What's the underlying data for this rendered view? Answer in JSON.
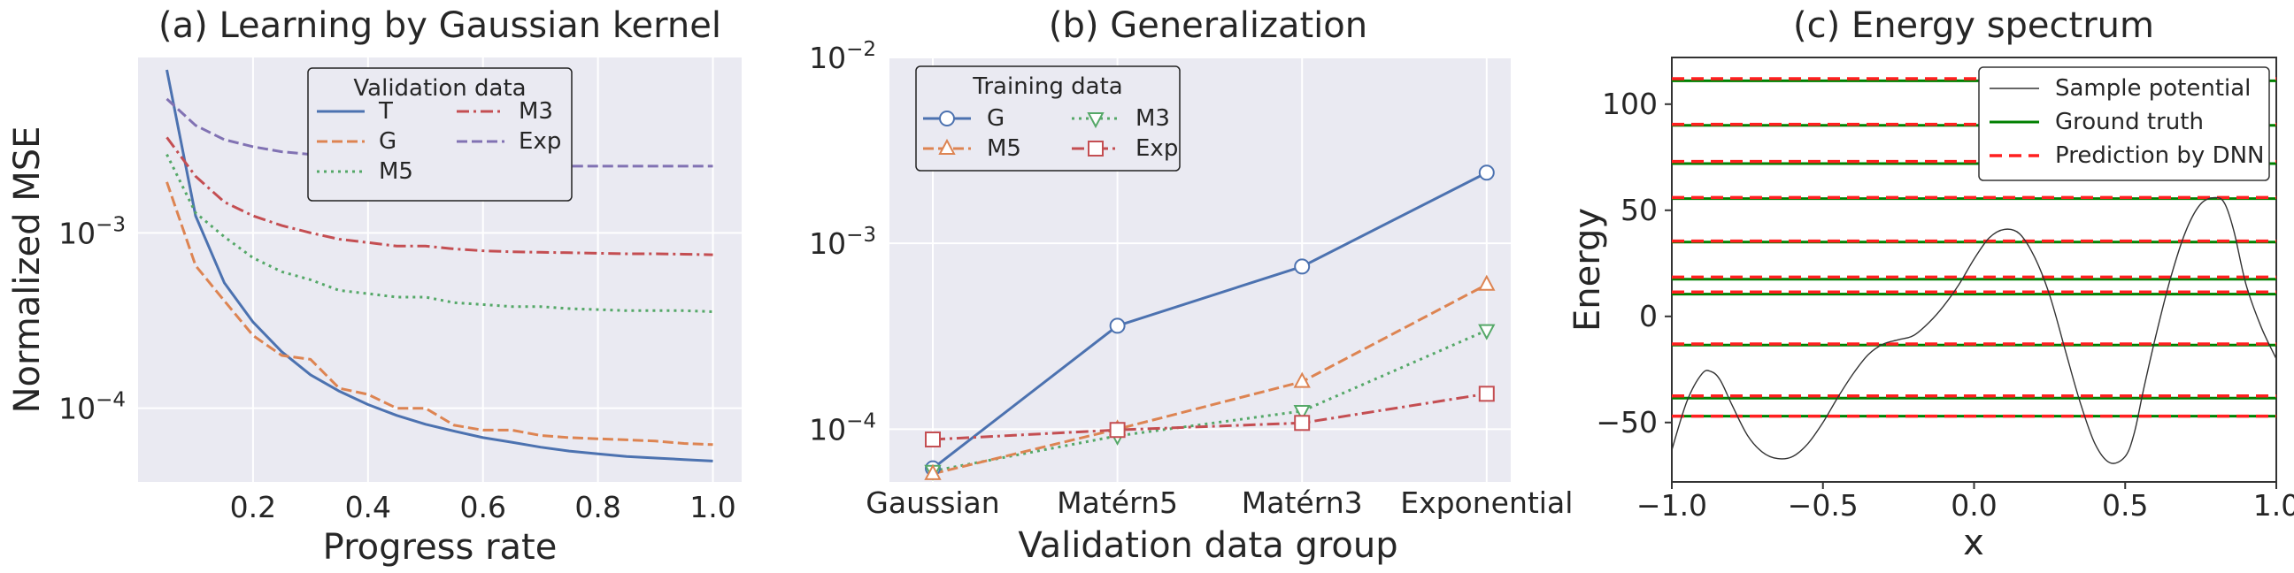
{
  "chart_data": [
    {
      "type": "line",
      "title": "(a) Learning by Gaussian kernel",
      "xlabel": "Progress rate",
      "ylabel": "Normalized MSE",
      "yscale": "log",
      "xlim": [
        0.0,
        1.05
      ],
      "ylim": [
        3.8e-05,
        0.01
      ],
      "xticks": [
        0.2,
        0.4,
        0.6,
        0.8,
        1.0
      ],
      "xtick_labels": [
        "0.2",
        "0.4",
        "0.6",
        "0.8",
        "1.0"
      ],
      "yticks": [
        0.0001,
        0.001
      ],
      "ytick_labels": [
        [
          "10",
          "−4"
        ],
        [
          "10",
          "−3"
        ]
      ],
      "legend": {
        "title": "Validation data",
        "position": "upper-center",
        "ncol": 2
      },
      "x": [
        0.05,
        0.1,
        0.15,
        0.2,
        0.25,
        0.3,
        0.35,
        0.4,
        0.45,
        0.5,
        0.55,
        0.6,
        0.65,
        0.7,
        0.75,
        0.8,
        0.85,
        0.9,
        0.95,
        1.0
      ],
      "series": [
        {
          "name": "T",
          "color": "#4c72b0",
          "dash": "solid",
          "values": [
            0.0085,
            0.00125,
            0.00052,
            0.00031,
            0.00021,
            0.000155,
            0.000125,
            0.000105,
            9.1e-05,
            8.1e-05,
            7.4e-05,
            6.8e-05,
            6.4e-05,
            6e-05,
            5.7e-05,
            5.5e-05,
            5.3e-05,
            5.2e-05,
            5.1e-05,
            5e-05
          ]
        },
        {
          "name": "G",
          "color": "#dd8452",
          "dash": "dashed",
          "values": [
            0.00195,
            0.00065,
            0.00041,
            0.00026,
            0.0002,
            0.00019,
            0.00013,
            0.00012,
            0.0001,
            0.0001,
            8e-05,
            7.5e-05,
            7.5e-05,
            7e-05,
            6.8e-05,
            6.7e-05,
            6.6e-05,
            6.5e-05,
            6.3e-05,
            6.2e-05
          ]
        },
        {
          "name": "M5",
          "color": "#55a868",
          "dash": "dotted",
          "values": [
            0.0028,
            0.0013,
            0.00095,
            0.00072,
            0.0006,
            0.00054,
            0.00047,
            0.00045,
            0.00043,
            0.00043,
            0.0004,
            0.00039,
            0.00038,
            0.00038,
            0.00037,
            0.000365,
            0.00036,
            0.00036,
            0.00036,
            0.000355
          ]
        },
        {
          "name": "M3",
          "color": "#c44e52",
          "dash": "dashdot",
          "values": [
            0.0035,
            0.0021,
            0.0015,
            0.00125,
            0.0011,
            0.001,
            0.00092,
            0.00088,
            0.00084,
            0.00084,
            0.00081,
            0.00079,
            0.00078,
            0.000775,
            0.00077,
            0.000765,
            0.00076,
            0.00076,
            0.000755,
            0.00075
          ]
        },
        {
          "name": "Exp",
          "color": "#8172b3",
          "dash": "dashed",
          "values": [
            0.0058,
            0.0041,
            0.0034,
            0.0031,
            0.0029,
            0.0028,
            0.0027,
            0.0026,
            0.0026,
            0.0025,
            0.0025,
            0.0025,
            0.0024,
            0.0024,
            0.0024,
            0.0024,
            0.0024,
            0.0024,
            0.0024,
            0.0024
          ]
        }
      ]
    },
    {
      "type": "line",
      "title": "(b) Generalization",
      "xlabel": "Validation data group",
      "ylabel": "",
      "yscale": "log",
      "ylim": [
        5.2e-05,
        0.01
      ],
      "categories": [
        "Gaussian",
        "Matérn5",
        "Matérn3",
        "Exponential"
      ],
      "yticks": [
        0.0001,
        0.001,
        0.01
      ],
      "ytick_labels": [
        [
          "10",
          "−4"
        ],
        [
          "10",
          "−3"
        ],
        [
          "10",
          "−2"
        ]
      ],
      "legend": {
        "title": "Training data",
        "position": "upper-left",
        "ncol": 2
      },
      "series": [
        {
          "name": "G",
          "color": "#4c72b0",
          "dash": "solid",
          "marker": "circle",
          "values": [
            6.15e-05,
            0.00036,
            0.00075,
            0.0024
          ]
        },
        {
          "name": "M3",
          "color": "#55a868",
          "dash": "dotted",
          "marker": "triangle-down",
          "values": [
            5.95e-05,
            9.2e-05,
            0.000125,
            0.00034
          ]
        },
        {
          "name": "M5",
          "color": "#dd8452",
          "dash": "dashed",
          "marker": "triangle-up",
          "values": [
            5.75e-05,
            0.0001,
            0.00018,
            0.0006
          ]
        },
        {
          "name": "Exp",
          "color": "#c44e52",
          "dash": "dashdot",
          "marker": "square",
          "values": [
            8.8e-05,
            9.9e-05,
            0.000108,
            0.000155
          ]
        }
      ]
    },
    {
      "type": "line",
      "title": "(c) Energy spectrum",
      "xlabel": "x",
      "ylabel": "Energy",
      "xlim": [
        -1.0,
        1.0
      ],
      "ylim": [
        -78,
        122
      ],
      "xticks": [
        -1.0,
        -0.5,
        0.0,
        0.5,
        1.0
      ],
      "xtick_labels": [
        "−1.0",
        "−0.5",
        "0.0",
        "0.5",
        "1.0"
      ],
      "yticks": [
        -50,
        0,
        50,
        100
      ],
      "ytick_labels": [
        "−50",
        "0",
        "50",
        "100"
      ],
      "legend": {
        "position": "upper-right"
      },
      "potential": {
        "name": "Sample potential",
        "color": "#333333",
        "x": [
          -1.0,
          -0.95,
          -0.9,
          -0.87,
          -0.84,
          -0.8,
          -0.75,
          -0.7,
          -0.65,
          -0.6,
          -0.55,
          -0.5,
          -0.45,
          -0.4,
          -0.35,
          -0.3,
          -0.25,
          -0.2,
          -0.15,
          -0.1,
          -0.05,
          0.0,
          0.05,
          0.1,
          0.15,
          0.2,
          0.25,
          0.3,
          0.35,
          0.4,
          0.45,
          0.5,
          0.53,
          0.56,
          0.6,
          0.65,
          0.7,
          0.75,
          0.8,
          0.83,
          0.86,
          0.9,
          0.95,
          1.0
        ],
        "values": [
          -63,
          -40,
          -27,
          -26,
          -30,
          -42,
          -56,
          -64,
          -67,
          -66,
          -60,
          -50,
          -38,
          -27,
          -18,
          -13,
          -11,
          -9,
          -3,
          5,
          15,
          27,
          37,
          41,
          39,
          28,
          10,
          -15,
          -40,
          -60,
          -69,
          -66,
          -55,
          -35,
          -10,
          18,
          40,
          53,
          56,
          53,
          40,
          15,
          -5,
          -20
        ]
      },
      "ground_truth": {
        "name": "Ground truth",
        "color": "#008000",
        "levels": [
          -47,
          -38.5,
          -13.5,
          10.5,
          17.5,
          35,
          55.5,
          72,
          90,
          111
        ]
      },
      "prediction": {
        "name": "Prediction by DNN",
        "color": "#ff2020",
        "levels": [
          -47,
          -37.5,
          -13,
          11.5,
          18.5,
          35.5,
          56,
          73,
          90.5,
          112
        ]
      }
    }
  ]
}
